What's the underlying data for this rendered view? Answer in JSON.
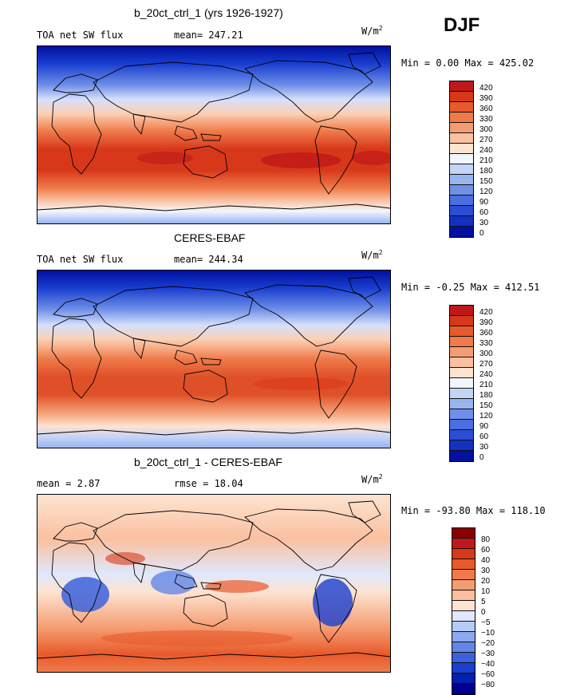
{
  "season": "DJF",
  "units_base": "W/m",
  "units_exp": "2",
  "palette_abs": [
    "#c01818",
    "#d8381a",
    "#e85a2b",
    "#f07a4a",
    "#f59d72",
    "#fac0a0",
    "#fde3d0",
    "#f4f6ff",
    "#c4d4f7",
    "#9ab4f0",
    "#6f90e8",
    "#4a6fe0",
    "#2a4fd4",
    "#1430c0",
    "#0010a0"
  ],
  "palette_diff": [
    "#8a0000",
    "#c01818",
    "#d8381a",
    "#e85a2b",
    "#f07a4a",
    "#f59d72",
    "#fac0a0",
    "#fde3d0",
    "#dfe8fd",
    "#b8cbf6",
    "#8eaaef",
    "#6487e6",
    "#3b61dc",
    "#1a3ed0",
    "#0020b0",
    "#000090"
  ],
  "panels": [
    {
      "title": "b_20ct_ctrl_1 (yrs 1926-1927)",
      "left_label": "TOA net SW flux",
      "mid_label": "mean= 247.21",
      "minmax": "Min =   0.00 Max = 425.02",
      "ticks": [
        "420",
        "390",
        "360",
        "330",
        "300",
        "270",
        "240",
        "210",
        "180",
        "150",
        "120",
        "90",
        "60",
        "30",
        "0"
      ]
    },
    {
      "title": "CERES-EBAF",
      "left_label": "TOA net SW flux",
      "mid_label": "mean= 244.34",
      "minmax": "Min =  -0.25 Max = 412.51",
      "ticks": [
        "420",
        "390",
        "360",
        "330",
        "300",
        "270",
        "240",
        "210",
        "180",
        "150",
        "120",
        "90",
        "60",
        "30",
        "0"
      ]
    },
    {
      "title": "b_20ct_ctrl_1 - CERES-EBAF",
      "left_label": "mean =   2.87",
      "mid_label": "rmse =  18.04",
      "minmax": "Min = -93.80 Max = 118.10",
      "ticks": [
        "80",
        "60",
        "40",
        "30",
        "20",
        "10",
        "5",
        "0",
        "−5",
        "−10",
        "−20",
        "−30",
        "−40",
        "−60",
        "−80"
      ]
    }
  ]
}
